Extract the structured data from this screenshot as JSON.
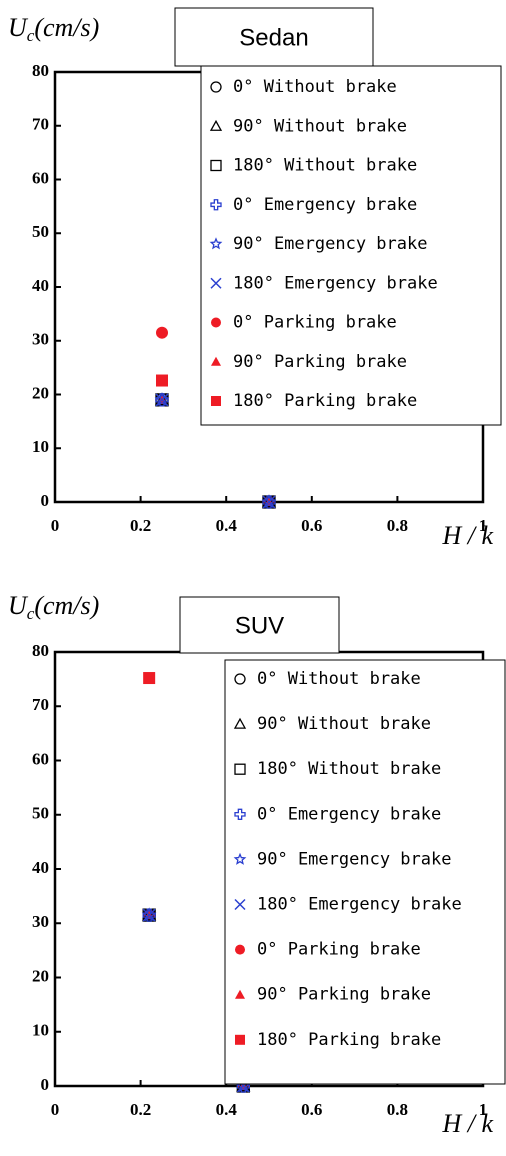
{
  "chart_data": [
    {
      "type": "scatter",
      "title": "Sedan",
      "ylabel": {
        "base": "U",
        "sub": "c",
        "rest": "(cm/s)"
      },
      "xlabel": "H / k",
      "x": [
        0.25,
        0.5
      ],
      "xlim": [
        0,
        1
      ],
      "xticks": [
        0,
        0.2,
        0.4,
        0.6,
        0.8,
        1
      ],
      "ylim": [
        0,
        80
      ],
      "yticks": [
        0,
        10,
        20,
        30,
        40,
        50,
        60,
        70,
        80
      ],
      "series": [
        {
          "name": "0°   Without brake",
          "color": "#000000",
          "marker": "circle-open",
          "values": [
            19,
            0
          ]
        },
        {
          "name": "90°   Without brake",
          "color": "#000000",
          "marker": "triangle-open",
          "values": [
            19,
            0
          ]
        },
        {
          "name": "180°   Without brake",
          "color": "#000000",
          "marker": "square-open",
          "values": [
            19,
            0
          ]
        },
        {
          "name": "0°  Emergency brake",
          "color": "#2a3fd0",
          "marker": "plus-open",
          "values": [
            19,
            0
          ]
        },
        {
          "name": "90°  Emergency brake",
          "color": "#2a3fd0",
          "marker": "star-open",
          "values": [
            19,
            0
          ]
        },
        {
          "name": "180°  Emergency brake",
          "color": "#2a3fd0",
          "marker": "x",
          "values": [
            19,
            0
          ]
        },
        {
          "name": "0°  Parking brake",
          "color": "#ee1c25",
          "marker": "circle",
          "values": [
            31.5,
            0
          ]
        },
        {
          "name": "90°  Parking brake",
          "color": "#ee1c25",
          "marker": "triangle",
          "values": [
            19,
            0
          ]
        },
        {
          "name": "180°  Parking brake",
          "color": "#ee1c25",
          "marker": "square",
          "values": [
            22.6,
            0
          ]
        }
      ]
    },
    {
      "type": "scatter",
      "title": "SUV",
      "ylabel": {
        "base": "U",
        "sub": "c",
        "rest": "(cm/s)"
      },
      "xlabel": "H / k",
      "x": [
        0.22,
        0.44
      ],
      "xlim": [
        0,
        1
      ],
      "xticks": [
        0,
        0.2,
        0.4,
        0.6,
        0.8,
        1
      ],
      "ylim": [
        0,
        80
      ],
      "yticks": [
        0,
        10,
        20,
        30,
        40,
        50,
        60,
        70,
        80
      ],
      "series": [
        {
          "name": "0°   Without brake",
          "color": "#000000",
          "marker": "circle-open",
          "values": [
            31.5,
            0
          ]
        },
        {
          "name": "90°   Without brake",
          "color": "#000000",
          "marker": "triangle-open",
          "values": [
            31.5,
            0
          ]
        },
        {
          "name": "180°   Without brake",
          "color": "#000000",
          "marker": "square-open",
          "values": [
            31.5,
            0
          ]
        },
        {
          "name": "0°  Emergency brake",
          "color": "#2a3fd0",
          "marker": "plus-open",
          "values": [
            31.5,
            0
          ]
        },
        {
          "name": "90°  Emergency brake",
          "color": "#2a3fd0",
          "marker": "star-open",
          "values": [
            31.5,
            0
          ]
        },
        {
          "name": "180°  Emergency brake",
          "color": "#2a3fd0",
          "marker": "x",
          "values": [
            31.5,
            0
          ]
        },
        {
          "name": "0°  Parking brake",
          "color": "#ee1c25",
          "marker": "circle",
          "values": [
            31.5,
            0
          ]
        },
        {
          "name": "90°  Parking brake",
          "color": "#ee1c25",
          "marker": "triangle",
          "values": [
            31.5,
            0
          ]
        },
        {
          "name": "180°  Parking brake",
          "color": "#ee1c25",
          "marker": "square",
          "values": [
            75.2,
            0
          ]
        }
      ]
    }
  ]
}
